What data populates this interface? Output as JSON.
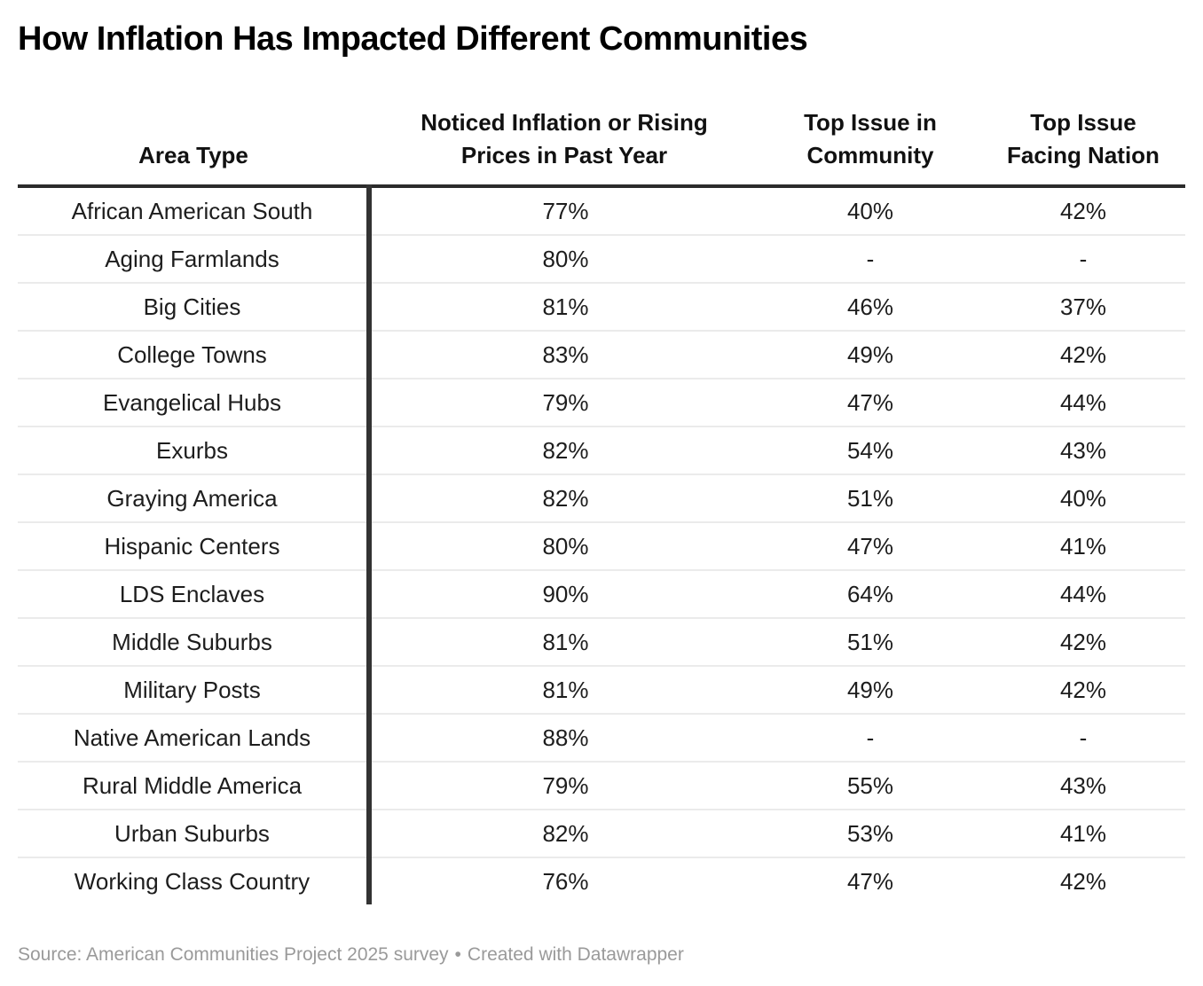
{
  "page": {
    "title": "How Inflation Has Impacted Different Communities",
    "footer": {
      "source": "Source: American Communities Project 2025 survey",
      "separator": "•",
      "credit": "Created with Datawrapper"
    }
  },
  "chart_data": {
    "type": "table",
    "title": "How Inflation Has Impacted Different Communities",
    "columns": [
      "Area Type",
      "Noticed Inflation or Rising\nPrices in Past Year",
      "Top Issue in\nCommunity",
      "Top Issue\nFacing Nation"
    ],
    "rows": [
      [
        "African American South",
        "77%",
        "40%",
        "42%"
      ],
      [
        "Aging Farmlands",
        "80%",
        "-",
        "-"
      ],
      [
        "Big Cities",
        "81%",
        "46%",
        "37%"
      ],
      [
        "College Towns",
        "83%",
        "49%",
        "42%"
      ],
      [
        "Evangelical Hubs",
        "79%",
        "47%",
        "44%"
      ],
      [
        "Exurbs",
        "82%",
        "54%",
        "43%"
      ],
      [
        "Graying America",
        "82%",
        "51%",
        "40%"
      ],
      [
        "Hispanic Centers",
        "80%",
        "47%",
        "41%"
      ],
      [
        "LDS Enclaves",
        "90%",
        "64%",
        "44%"
      ],
      [
        "Middle Suburbs",
        "81%",
        "51%",
        "42%"
      ],
      [
        "Military Posts",
        "81%",
        "49%",
        "42%"
      ],
      [
        "Native American Lands",
        "88%",
        "-",
        "-"
      ],
      [
        "Rural Middle America",
        "79%",
        "55%",
        "43%"
      ],
      [
        "Urban Suburbs",
        "82%",
        "53%",
        "41%"
      ],
      [
        "Working Class Country",
        "76%",
        "47%",
        "42%"
      ]
    ],
    "layout_hints": {
      "grid": "horizontal-row-separators",
      "column_divider_after": "Area Type",
      "value_alignment": "center"
    },
    "colors": {
      "text": "#1d1d1d",
      "header_rule": "#2b2b2b",
      "column_divider": "#333333",
      "row_separator": "#ebebeb",
      "footer_text": "#9a9a9a"
    }
  }
}
